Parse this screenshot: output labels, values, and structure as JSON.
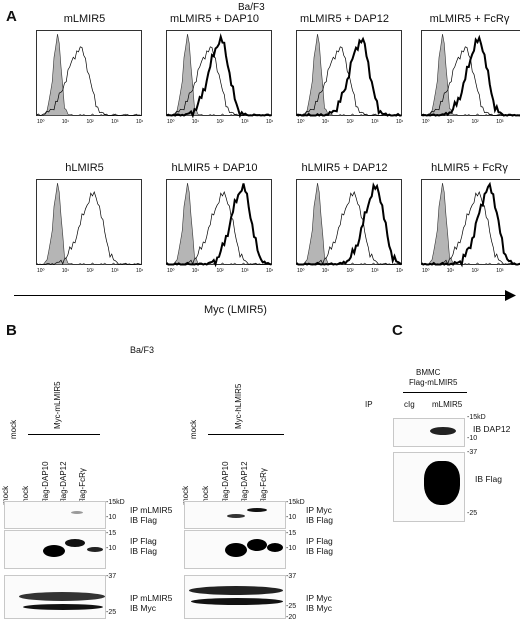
{
  "panelA": {
    "letter": "A",
    "cell_line": "Ba/F3",
    "row1_titles": [
      "mLMIR5",
      "mLMIR5 + DAP10",
      "mLMIR5 + DAP12",
      "mLMIR5 + FcRγ"
    ],
    "row2_titles": [
      "hLMIR5",
      "hLMIR5 + DAP10",
      "hLMIR5 + DAP12",
      "hLMIR5 + FcRγ"
    ],
    "x_axis_label": "Myc (LMIR5)",
    "tick_labels": [
      "10⁰",
      "10¹",
      "10²",
      "10³",
      "10⁴"
    ]
  },
  "panelB": {
    "letter": "B",
    "cell_line": "Ba/F3",
    "left": {
      "top_mock": "mock",
      "top_construct": "Myc-mLMIR5",
      "lanes": [
        "mock",
        "mock",
        "Flag-DAP10",
        "Flag-DAP12",
        "Flag-FcRγ"
      ],
      "blot1": {
        "mw": [
          "-15kD",
          "-10"
        ],
        "label": [
          "IP mLMIR5",
          "IB Flag"
        ]
      },
      "blot2": {
        "mw": [
          "-15",
          "-10"
        ],
        "label": [
          "IP Flag",
          "IB Flag"
        ]
      },
      "blot3": {
        "mw": [
          "-37",
          "-25"
        ],
        "label": [
          "IP mLMIR5",
          "IB Myc"
        ]
      }
    },
    "right": {
      "top_mock": "mock",
      "top_construct": "Myc-hLMIR5",
      "lanes": [
        "mock",
        "mock",
        "Flag-DAP10",
        "Flag-DAP12",
        "Flag-FcRγ"
      ],
      "blot1": {
        "mw": [
          "-15kD",
          "-10"
        ],
        "label": [
          "IP Myc",
          "IB Flag"
        ]
      },
      "blot2": {
        "mw": [
          "-15",
          "-10"
        ],
        "label": [
          "IP Flag",
          "IB Flag"
        ]
      },
      "blot3": {
        "mw": [
          "-37",
          "-25",
          "-20"
        ],
        "label": [
          "IP Myc",
          "IB Myc"
        ]
      }
    }
  },
  "panelC": {
    "letter": "C",
    "header": [
      "BMMC",
      "Flag-mLMIR5"
    ],
    "ip_label": "IP",
    "lanes": [
      "cIg",
      "mLMIR5"
    ],
    "blot1": {
      "mw": [
        "-15kD",
        "-10"
      ],
      "label": "IB DAP12"
    },
    "blot2": {
      "mw": [
        "-37",
        "-25"
      ],
      "label": "IB Flag"
    }
  }
}
